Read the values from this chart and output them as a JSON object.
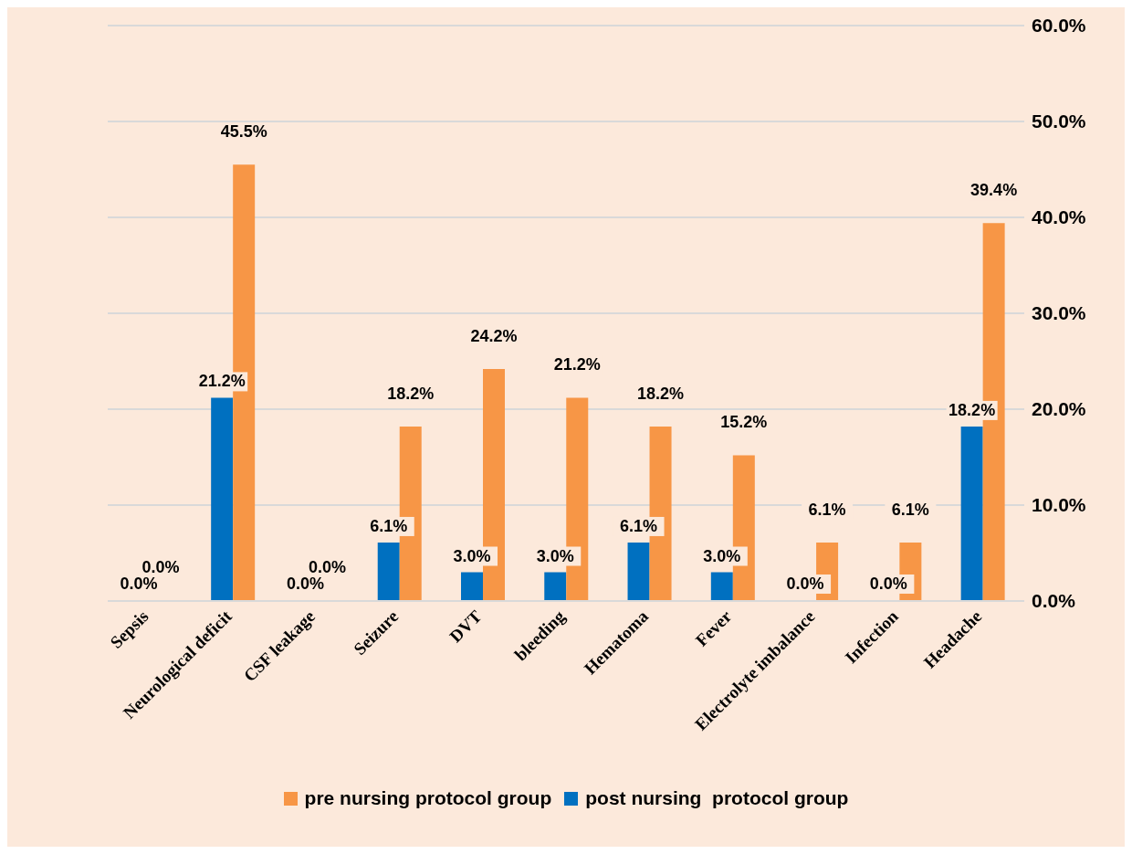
{
  "chart_data": {
    "type": "bar",
    "categories": [
      "Sepsis",
      "Neurological deficit",
      "CSF leakage",
      "Seizure",
      "DVT",
      "bleeding",
      "Hematoma",
      "Fever",
      "Electrolyte imbalance",
      "Infection",
      "Headache"
    ],
    "series": [
      {
        "name": "post nursing  protocol group",
        "color": "#0070c0",
        "values": [
          0,
          21.2,
          0,
          6.1,
          3.0,
          3.0,
          6.1,
          3.0,
          0,
          0,
          18.2
        ],
        "value_labels": [
          "0.0%",
          "21.2%",
          "0.0%",
          "6.1%",
          "3.0%",
          "3.0%",
          "6.1%",
          "3.0%",
          "0.0%",
          "0.0%",
          "18.2%"
        ]
      },
      {
        "name": "pre nursing protocol group",
        "color": "#f79646",
        "values": [
          0,
          45.5,
          0,
          18.2,
          24.2,
          21.2,
          18.2,
          15.2,
          6.1,
          6.1,
          39.4
        ],
        "value_labels": [
          "0.0%",
          "45.5%",
          "0.0%",
          "18.2%",
          "24.2%",
          "21.2%",
          "18.2%",
          "15.2%",
          "6.1%",
          "6.1%",
          "39.4%"
        ]
      }
    ],
    "ylim": [
      0,
      60
    ],
    "yticks": [
      {
        "value": 0,
        "label": "0.0%"
      },
      {
        "value": 10,
        "label": "10.0%"
      },
      {
        "value": 20,
        "label": "20.0%"
      },
      {
        "value": 30,
        "label": "30.0%"
      },
      {
        "value": 40,
        "label": "40.0%"
      },
      {
        "value": 50,
        "label": "50.0%"
      },
      {
        "value": 60,
        "label": "60.0%"
      }
    ],
    "grid": "y",
    "legend": "bottom"
  }
}
